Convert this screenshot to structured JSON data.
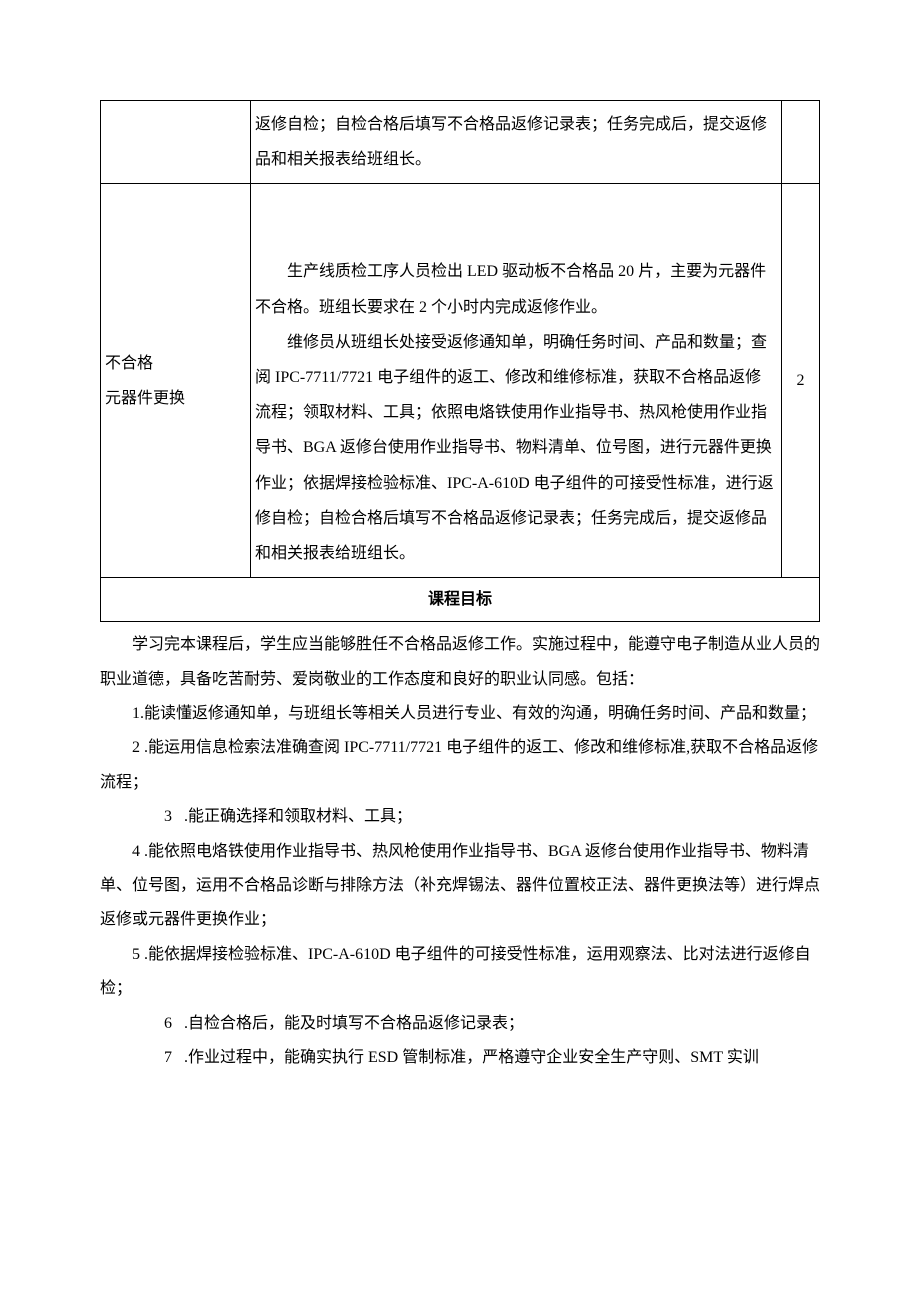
{
  "table": {
    "rows": [
      {
        "col1": "",
        "col2": "返修自检；自检合格后填写不合格品返修记录表；任务完成后，提交返修品和相关报表给班组长。",
        "col3": ""
      },
      {
        "col1_line1": "不合格",
        "col1_line2": "元器件更换",
        "col2_p1": "生产线质检工序人员检出 LED 驱动板不合格品 20 片，主要为元器件不合格。班组长要求在 2 个小时内完成返修作业。",
        "col2_p2": "维修员从班组长处接受返修通知单，明确任务时间、产品和数量；查阅 IPC-7711/7721 电子组件的返工、修改和维修标准，获取不合格品返修流程；领取材料、工具；依照电烙铁使用作业指导书、热风枪使用作业指导书、BGA 返修台使用作业指导书、物料清单、位号图，进行元器件更换作业；依据焊接检验标准、IPC-A-610D 电子组件的可接受性标准，进行返修自检；自检合格后填写不合格品返修记录表；任务完成后，提交返修品和相关报表给班组长。",
        "col3": "2"
      }
    ],
    "footer": "课程目标"
  },
  "paragraphs": {
    "intro": "学习完本课程后，学生应当能够胜任不合格品返修工作。实施过程中，能遵守电子制造从业人员的职业道德，具备吃苦耐劳、爱岗敬业的工作态度和良好的职业认同感。包括：",
    "p1": "1.能读懂返修通知单，与班组长等相关人员进行专业、有效的沟通，明确任务时间、产品和数量；",
    "p2": "2 .能运用信息检索法准确查阅 IPC-7711/7721 电子组件的返工、修改和维修标准,获取不合格品返修流程；",
    "p3_num": "3",
    "p3_text": ".能正确选择和领取材料、工具；",
    "p4": "4 .能依照电烙铁使用作业指导书、热风枪使用作业指导书、BGA 返修台使用作业指导书、物料清单、位号图，运用不合格品诊断与排除方法（补充焊锡法、器件位置校正法、器件更换法等）进行焊点返修或元器件更换作业；",
    "p5": "5 .能依据焊接检验标准、IPC-A-610D 电子组件的可接受性标准，运用观察法、比对法进行返修自检；",
    "p6_num": "6",
    "p6_text": ".自检合格后，能及时填写不合格品返修记录表；",
    "p7_num": "7",
    "p7_text": ".作业过程中，能确实执行 ESD 管制标准，严格遵守企业安全生产守则、SMT 实训"
  }
}
